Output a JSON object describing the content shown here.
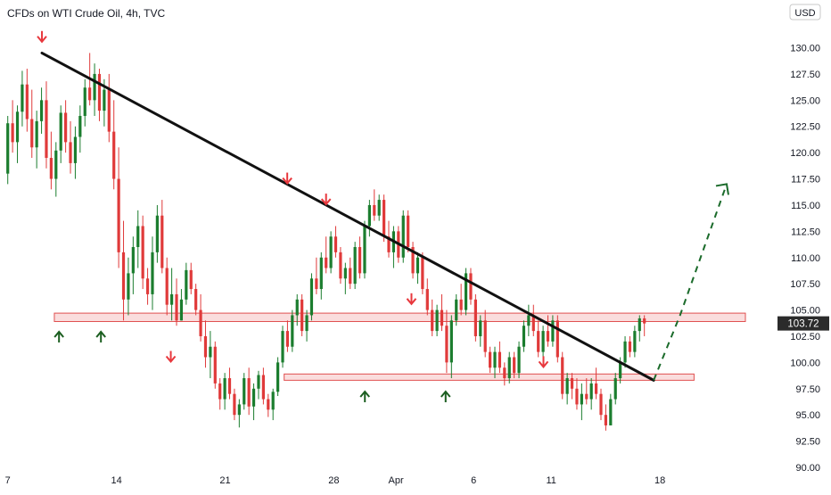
{
  "header": {
    "title": "CFDs on WTI Crude Oil, 4h, TVC",
    "currency": "USD"
  },
  "colors": {
    "up": "#1b7d2e",
    "down": "#e03a3a",
    "trendline": "#111111",
    "zone_fill": "#f7c7c7",
    "zone_stroke": "#e05050",
    "price_label": "#2b2b2b",
    "projection": "#1b6b2b",
    "arrow_high": "#e8383d",
    "arrow_low": "#1b5e20"
  },
  "chart_data": {
    "type": "candlestick",
    "symbol": "CFDs on WTI Crude Oil",
    "timeframe": "4h",
    "source": "TVC",
    "ylim": [
      90,
      132
    ],
    "y_ticks": [
      "90.00",
      "92.50",
      "95.00",
      "97.50",
      "100.00",
      "102.50",
      "105.00",
      "107.50",
      "110.00",
      "112.50",
      "115.00",
      "117.50",
      "120.00",
      "122.50",
      "125.00",
      "127.50",
      "130.00"
    ],
    "x_ticks": [
      "7",
      "14",
      "21",
      "28",
      "Apr",
      "6",
      "11",
      "18"
    ],
    "x_tick_days": [
      0,
      7,
      14,
      21,
      25,
      30,
      35,
      42
    ],
    "xlim_days": [
      -0.5,
      49
    ],
    "last_price": "103.72",
    "last_price_value": 103.72,
    "candles_open_day": 0,
    "candles_step_days": 0.1667,
    "candles": [
      [
        118.0,
        123.5,
        117.0,
        122.8
      ],
      [
        122.8,
        125.0,
        120.0,
        121.0
      ],
      [
        121.0,
        124.5,
        119.0,
        123.9
      ],
      [
        123.9,
        127.8,
        122.5,
        126.5
      ],
      [
        126.5,
        128.0,
        122.0,
        123.2
      ],
      [
        123.2,
        126.0,
        119.5,
        120.5
      ],
      [
        120.5,
        124.0,
        118.5,
        123.0
      ],
      [
        123.0,
        126.2,
        121.8,
        125.0
      ],
      [
        125.0,
        126.8,
        118.5,
        119.5
      ],
      [
        119.5,
        122.0,
        116.5,
        117.5
      ],
      [
        117.5,
        121.0,
        115.8,
        120.2
      ],
      [
        120.2,
        124.5,
        119.0,
        123.8
      ],
      [
        123.8,
        125.0,
        120.0,
        121.0
      ],
      [
        121.0,
        123.0,
        118.0,
        119.0
      ],
      [
        119.0,
        122.5,
        117.5,
        121.5
      ],
      [
        121.5,
        124.5,
        120.0,
        123.5
      ],
      [
        123.5,
        127.0,
        122.5,
        126.2
      ],
      [
        126.2,
        129.5,
        124.5,
        125.0
      ],
      [
        125.0,
        128.5,
        123.5,
        127.5
      ],
      [
        127.5,
        128.0,
        123.0,
        124.0
      ],
      [
        124.0,
        127.0,
        122.5,
        126.0
      ],
      [
        126.0,
        127.5,
        121.0,
        122.0
      ],
      [
        122.0,
        125.0,
        116.5,
        117.5
      ],
      [
        117.5,
        120.5,
        109.0,
        110.5
      ],
      [
        110.5,
        113.5,
        104.0,
        106.0
      ],
      [
        106.0,
        110.0,
        104.5,
        108.5
      ],
      [
        108.5,
        112.0,
        106.5,
        111.0
      ],
      [
        111.0,
        114.5,
        109.0,
        113.0
      ],
      [
        113.0,
        114.0,
        107.0,
        108.0
      ],
      [
        108.0,
        109.0,
        105.5,
        106.5
      ],
      [
        106.5,
        112.0,
        105.0,
        110.5
      ],
      [
        110.5,
        115.0,
        109.5,
        114.0
      ],
      [
        114.0,
        115.5,
        108.5,
        109.0
      ],
      [
        109.0,
        110.0,
        104.5,
        105.5
      ],
      [
        105.5,
        109.0,
        104.0,
        106.5
      ],
      [
        106.5,
        108.0,
        103.5,
        104.0
      ],
      [
        104.0,
        107.0,
        104.0,
        106.0
      ],
      [
        106.0,
        109.5,
        105.5,
        108.8
      ],
      [
        108.8,
        109.5,
        106.5,
        107.0
      ],
      [
        107.0,
        107.5,
        104.5,
        105.0
      ],
      [
        105.0,
        106.5,
        102.0,
        102.5
      ],
      [
        102.5,
        104.0,
        99.5,
        100.5
      ],
      [
        100.5,
        103.0,
        98.5,
        101.5
      ],
      [
        101.5,
        102.0,
        97.5,
        98.0
      ],
      [
        98.0,
        98.5,
        95.5,
        96.5
      ],
      [
        96.5,
        99.0,
        95.5,
        98.5
      ],
      [
        98.5,
        99.5,
        96.5,
        97.0
      ],
      [
        97.0,
        97.5,
        94.5,
        95.0
      ],
      [
        95.0,
        96.5,
        93.8,
        96.0
      ],
      [
        96.0,
        99.0,
        95.5,
        98.5
      ],
      [
        98.5,
        99.5,
        95.0,
        95.8
      ],
      [
        95.8,
        98.0,
        94.5,
        97.5
      ],
      [
        97.5,
        99.2,
        96.5,
        98.8
      ],
      [
        98.8,
        99.5,
        96.0,
        96.5
      ],
      [
        96.5,
        97.0,
        94.8,
        95.5
      ],
      [
        95.5,
        97.5,
        94.5,
        97.2
      ],
      [
        97.2,
        100.5,
        96.8,
        100.0
      ],
      [
        100.0,
        103.5,
        99.5,
        103.0
      ],
      [
        103.0,
        104.0,
        101.0,
        101.5
      ],
      [
        101.5,
        105.0,
        101.0,
        104.5
      ],
      [
        104.5,
        106.5,
        103.5,
        106.0
      ],
      [
        106.0,
        106.5,
        102.5,
        103.0
      ],
      [
        103.0,
        105.0,
        102.0,
        104.5
      ],
      [
        104.5,
        108.5,
        104.0,
        108.0
      ],
      [
        108.0,
        110.0,
        106.5,
        107.0
      ],
      [
        107.0,
        110.5,
        106.0,
        110.0
      ],
      [
        110.0,
        112.0,
        108.5,
        109.0
      ],
      [
        109.0,
        112.5,
        108.5,
        112.0
      ],
      [
        112.0,
        113.0,
        110.0,
        110.5
      ],
      [
        110.5,
        111.0,
        107.5,
        108.0
      ],
      [
        108.0,
        109.5,
        106.5,
        109.0
      ],
      [
        109.0,
        110.0,
        107.0,
        107.5
      ],
      [
        107.5,
        111.5,
        107.0,
        111.0
      ],
      [
        111.0,
        112.0,
        108.0,
        108.5
      ],
      [
        108.5,
        113.5,
        108.0,
        113.0
      ],
      [
        113.0,
        115.5,
        112.0,
        115.0
      ],
      [
        115.0,
        116.5,
        113.5,
        114.0
      ],
      [
        114.0,
        116.0,
        113.5,
        115.5
      ],
      [
        115.5,
        116.0,
        111.5,
        112.0
      ],
      [
        112.0,
        113.5,
        110.0,
        110.5
      ],
      [
        110.5,
        113.0,
        109.0,
        112.5
      ],
      [
        112.5,
        113.0,
        109.5,
        110.0
      ],
      [
        110.0,
        114.5,
        109.5,
        114.0
      ],
      [
        114.0,
        114.5,
        110.5,
        111.0
      ],
      [
        111.0,
        111.5,
        108.0,
        108.5
      ],
      [
        108.5,
        110.5,
        107.5,
        110.0
      ],
      [
        110.0,
        110.5,
        106.5,
        107.0
      ],
      [
        107.0,
        108.0,
        104.5,
        105.0
      ],
      [
        105.0,
        106.0,
        102.5,
        103.0
      ],
      [
        103.0,
        105.5,
        102.5,
        105.0
      ],
      [
        105.0,
        106.5,
        103.0,
        103.5
      ],
      [
        103.5,
        105.0,
        99.0,
        100.0
      ],
      [
        100.0,
        104.5,
        98.5,
        104.0
      ],
      [
        104.0,
        106.5,
        103.5,
        106.0
      ],
      [
        106.0,
        107.5,
        104.5,
        105.0
      ],
      [
        105.0,
        109.0,
        104.5,
        108.5
      ],
      [
        108.5,
        109.0,
        105.5,
        106.0
      ],
      [
        106.0,
        106.5,
        102.0,
        102.5
      ],
      [
        102.5,
        104.5,
        101.5,
        104.0
      ],
      [
        104.0,
        105.0,
        100.5,
        101.0
      ],
      [
        101.0,
        101.5,
        99.0,
        99.5
      ],
      [
        99.5,
        101.5,
        98.5,
        101.0
      ],
      [
        101.0,
        102.0,
        99.0,
        99.5
      ],
      [
        99.5,
        100.0,
        97.8,
        98.5
      ],
      [
        98.5,
        101.0,
        98.0,
        100.5
      ],
      [
        100.5,
        101.0,
        98.5,
        99.0
      ],
      [
        99.0,
        102.0,
        98.5,
        101.5
      ],
      [
        101.5,
        104.0,
        101.0,
        103.5
      ],
      [
        103.5,
        105.5,
        102.5,
        104.5
      ],
      [
        104.5,
        105.5,
        102.5,
        103.0
      ],
      [
        103.0,
        104.0,
        100.5,
        101.0
      ],
      [
        101.0,
        103.5,
        100.5,
        103.0
      ],
      [
        103.0,
        104.5,
        101.5,
        102.0
      ],
      [
        102.0,
        104.5,
        101.5,
        104.0
      ],
      [
        104.0,
        104.5,
        100.0,
        100.5
      ],
      [
        100.5,
        101.0,
        96.5,
        97.0
      ],
      [
        97.0,
        99.0,
        96.0,
        98.5
      ],
      [
        98.5,
        99.0,
        96.5,
        97.5
      ],
      [
        97.5,
        98.5,
        95.5,
        96.0
      ],
      [
        96.0,
        98.0,
        94.5,
        97.0
      ],
      [
        97.0,
        98.5,
        96.0,
        96.5
      ],
      [
        96.5,
        98.5,
        95.5,
        98.0
      ],
      [
        98.0,
        99.5,
        96.5,
        97.0
      ],
      [
        97.0,
        97.5,
        94.5,
        95.0
      ],
      [
        95.0,
        96.0,
        93.5,
        94.0
      ],
      [
        94.0,
        97.0,
        94.0,
        96.5
      ],
      [
        96.5,
        99.0,
        96.0,
        98.5
      ],
      [
        98.5,
        100.5,
        98.0,
        100.0
      ],
      [
        100.0,
        102.5,
        99.5,
        102.0
      ],
      [
        102.0,
        102.5,
        100.5,
        101.0
      ],
      [
        101.0,
        103.5,
        100.5,
        103.0
      ],
      [
        103.0,
        104.5,
        102.0,
        104.2
      ],
      [
        104.2,
        104.5,
        102.5,
        103.72
      ]
    ],
    "resistance_zone": [
      103.9,
      104.7
    ],
    "support_zone": [
      98.3,
      98.9
    ],
    "trendline": {
      "from": [
        2.2,
        129.5
      ],
      "to": [
        41.6,
        98.3
      ]
    },
    "projection": [
      [
        41.6,
        98.3
      ],
      [
        43.3,
        104.5
      ],
      [
        46.3,
        117.0
      ]
    ],
    "markers_high": [
      [
        2.2,
        131.0
      ],
      [
        18.0,
        117.5
      ],
      [
        20.5,
        115.5
      ],
      [
        26.0,
        106.0
      ],
      [
        34.5,
        100.0
      ],
      [
        10.5,
        100.5
      ]
    ],
    "markers_low": [
      [
        3.3,
        102.5
      ],
      [
        6.0,
        102.5
      ],
      [
        23.0,
        96.8
      ],
      [
        28.2,
        96.8
      ]
    ]
  }
}
